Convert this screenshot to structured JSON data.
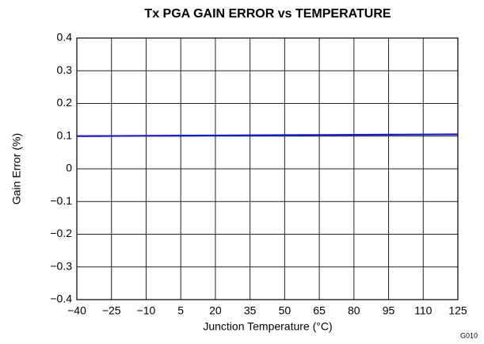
{
  "chart_data": {
    "type": "line",
    "title": "Tx PGA GAIN ERROR vs TEMPERATURE",
    "xlabel": "Junction Temperature (°C)",
    "ylabel": "Gain Error (%)",
    "annotation": "G010",
    "x": [
      -40,
      -25,
      -10,
      5,
      20,
      35,
      50,
      65,
      80,
      95,
      110,
      125
    ],
    "series": [
      {
        "color": "#1a1ac8",
        "values": [
          0.1,
          0.1005,
          0.101,
          0.1015,
          0.102,
          0.1025,
          0.103,
          0.1035,
          0.104,
          0.1045,
          0.105,
          0.1055
        ]
      }
    ],
    "xlim": [
      -40,
      125
    ],
    "xticks": [
      {
        "value": -40,
        "label": "−40"
      },
      {
        "value": -25,
        "label": "−25"
      },
      {
        "value": -10,
        "label": "−10"
      },
      5,
      20,
      35,
      50,
      65,
      80,
      95,
      110,
      125
    ],
    "ylim": [
      -0.4,
      0.4
    ],
    "yticks": [
      {
        "value": -0.4,
        "label": "−0.4"
      },
      {
        "value": -0.3,
        "label": "−0.3"
      },
      {
        "value": -0.2,
        "label": "−0.2"
      },
      {
        "value": -0.1,
        "label": "−0.1"
      },
      0,
      0.1,
      0.2,
      0.3,
      0.4
    ],
    "grid": true
  }
}
